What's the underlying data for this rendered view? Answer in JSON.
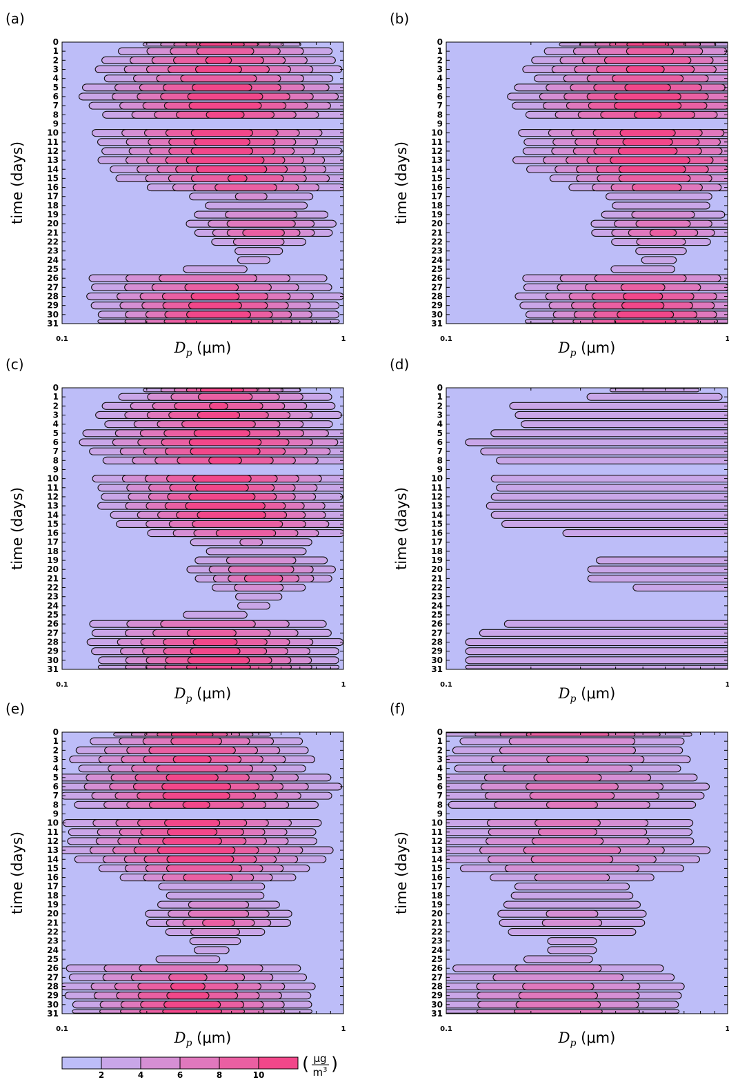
{
  "colors": {
    "background_level": "#bdbdf8",
    "scale": [
      "#bdbdf8",
      "#c9a6e8",
      "#d58fd4",
      "#e078bd",
      "#ea5fa2",
      "#f2478a",
      "#f83a78"
    ],
    "contour_line": "#111111"
  },
  "chart_data": [
    {
      "id": "a",
      "panel_label": "(a)",
      "type": "heatmap",
      "ylabel": "time (days)",
      "xlabel_sym": "D",
      "xlabel_sub": "p",
      "xlabel_unit": " (μm)",
      "x_scale": "log",
      "xlim": [
        0.1,
        1
      ],
      "x_ticks": [
        "0.1",
        "1"
      ],
      "ylim": [
        0,
        31
      ],
      "y_ticks": [
        "0",
        "1",
        "2",
        "3",
        "4",
        "5",
        "6",
        "7",
        "8",
        "9",
        "10",
        "11",
        "12",
        "13",
        "14",
        "15",
        "16",
        "17",
        "18",
        "19",
        "20",
        "21",
        "22",
        "23",
        "24",
        "25",
        "26",
        "27",
        "28",
        "29",
        "30",
        "31"
      ],
      "mode_diameter_um": [
        0.37,
        0.38,
        0.36,
        0.36,
        0.36,
        0.37,
        0.38,
        0.38,
        0.38,
        0.38,
        0.37,
        0.37,
        0.37,
        0.38,
        0.4,
        0.42,
        0.45,
        0.47,
        0.49,
        0.51,
        0.51,
        0.52,
        0.5,
        0.5,
        0.48,
        0.35,
        0.33,
        0.34,
        0.35,
        0.35,
        0.36,
        0.36
      ],
      "width_decades": [
        0.15,
        0.22,
        0.23,
        0.24,
        0.23,
        0.27,
        0.28,
        0.26,
        0.24,
        0.24,
        0.25,
        0.24,
        0.23,
        0.24,
        0.23,
        0.24,
        0.2,
        0.18,
        0.16,
        0.17,
        0.16,
        0.14,
        0.12,
        0.08,
        0.07,
        0.26,
        0.26,
        0.25,
        0.25,
        0.24,
        0.23,
        0.23
      ],
      "peak_ugm3": [
        11.5,
        8.9,
        10.2,
        10.6,
        9.5,
        10.8,
        11.2,
        11.3,
        10.4,
        1.5,
        11.0,
        10.9,
        11.2,
        11.8,
        11.6,
        10.1,
        9.3,
        4.2,
        3.8,
        5.3,
        8.0,
        9.2,
        5.3,
        3.5,
        2.8,
        2.2,
        7.5,
        8.6,
        10.6,
        10.8,
        11.3,
        11.4
      ]
    },
    {
      "id": "b",
      "panel_label": "(b)",
      "type": "heatmap",
      "ylabel": "time (days)",
      "xlabel_sym": "D",
      "xlabel_sub": "p",
      "xlabel_unit": " (μm)",
      "x_scale": "log",
      "xlim": [
        0.1,
        1
      ],
      "x_ticks": [
        "0.1",
        "1"
      ],
      "ylim": [
        0,
        31
      ],
      "y_ticks": [
        "0",
        "1",
        "2",
        "3",
        "4",
        "5",
        "6",
        "7",
        "8",
        "9",
        "10",
        "11",
        "12",
        "13",
        "14",
        "15",
        "16",
        "17",
        "18",
        "19",
        "20",
        "21",
        "22",
        "23",
        "24",
        "25",
        "26",
        "27",
        "28",
        "29",
        "30",
        "31"
      ],
      "mode_diameter_um": [
        0.52,
        0.53,
        0.52,
        0.51,
        0.52,
        0.52,
        0.52,
        0.52,
        0.52,
        0.52,
        0.52,
        0.52,
        0.52,
        0.53,
        0.54,
        0.55,
        0.56,
        0.57,
        0.58,
        0.59,
        0.59,
        0.59,
        0.58,
        0.58,
        0.57,
        0.5,
        0.49,
        0.5,
        0.5,
        0.5,
        0.51,
        0.51
      ],
      "width_decades": [
        0.17,
        0.22,
        0.23,
        0.24,
        0.23,
        0.26,
        0.27,
        0.26,
        0.24,
        0.24,
        0.25,
        0.24,
        0.24,
        0.26,
        0.24,
        0.21,
        0.18,
        0.16,
        0.16,
        0.16,
        0.16,
        0.15,
        0.13,
        0.09,
        0.08,
        0.26,
        0.26,
        0.25,
        0.25,
        0.24,
        0.23,
        0.23
      ],
      "peak_ugm3": [
        11.0,
        8.6,
        10.0,
        10.4,
        9.3,
        10.5,
        11.0,
        11.1,
        10.2,
        1.5,
        10.8,
        10.7,
        11.0,
        11.6,
        11.3,
        9.6,
        9.0,
        4.0,
        3.6,
        5.1,
        7.2,
        8.4,
        5.0,
        3.3,
        2.7,
        2.2,
        7.3,
        8.4,
        10.4,
        10.5,
        11.0,
        11.2
      ]
    },
    {
      "id": "c",
      "panel_label": "(c)",
      "type": "heatmap",
      "ylabel": "time (days)",
      "xlabel_sym": "D",
      "xlabel_sub": "p",
      "xlabel_unit": " (μm)",
      "x_scale": "log",
      "xlim": [
        0.1,
        1
      ],
      "x_ticks": [
        "0.1",
        "1"
      ],
      "ylim": [
        0,
        31
      ],
      "y_ticks": [
        "0",
        "1",
        "2",
        "3",
        "4",
        "5",
        "6",
        "7",
        "8",
        "9",
        "10",
        "11",
        "12",
        "13",
        "14",
        "15",
        "16",
        "17",
        "18",
        "19",
        "20",
        "21",
        "22",
        "23",
        "24",
        "25",
        "26",
        "27",
        "28",
        "29",
        "30",
        "31"
      ],
      "mode_diameter_um": [
        0.37,
        0.38,
        0.36,
        0.36,
        0.36,
        0.37,
        0.38,
        0.38,
        0.38,
        0.38,
        0.37,
        0.37,
        0.37,
        0.38,
        0.4,
        0.42,
        0.45,
        0.47,
        0.49,
        0.51,
        0.51,
        0.52,
        0.5,
        0.5,
        0.48,
        0.35,
        0.33,
        0.34,
        0.35,
        0.35,
        0.36,
        0.36
      ],
      "width_decades": [
        0.15,
        0.22,
        0.23,
        0.24,
        0.23,
        0.27,
        0.28,
        0.26,
        0.24,
        0.24,
        0.25,
        0.24,
        0.23,
        0.24,
        0.23,
        0.24,
        0.2,
        0.18,
        0.16,
        0.17,
        0.16,
        0.14,
        0.12,
        0.08,
        0.07,
        0.26,
        0.26,
        0.25,
        0.25,
        0.24,
        0.23,
        0.23
      ],
      "peak_ugm3": [
        11.4,
        8.8,
        10.1,
        10.5,
        9.4,
        10.7,
        11.1,
        11.2,
        10.3,
        1.5,
        10.9,
        10.8,
        11.4,
        11.9,
        11.5,
        10.0,
        9.2,
        4.1,
        3.7,
        5.2,
        7.8,
        9.0,
        5.2,
        3.4,
        2.8,
        2.2,
        7.4,
        8.5,
        10.5,
        10.7,
        11.2,
        11.3
      ]
    },
    {
      "id": "d",
      "panel_label": "(d)",
      "type": "heatmap",
      "ylabel": "time (days)",
      "xlabel_sym": "D",
      "xlabel_sub": "p",
      "xlabel_unit": " (μm)",
      "x_scale": "log",
      "xlim": [
        0.1,
        1
      ],
      "x_ticks": [
        "0.1",
        "1"
      ],
      "ylim": [
        0,
        31
      ],
      "y_ticks": [
        "0",
        "1",
        "2",
        "3",
        "4",
        "5",
        "6",
        "7",
        "8",
        "9",
        "10",
        "11",
        "12",
        "13",
        "14",
        "15",
        "16",
        "17",
        "18",
        "19",
        "20",
        "21",
        "22",
        "23",
        "24",
        "25",
        "26",
        "27",
        "28",
        "29",
        "30",
        "31"
      ],
      "mode_diameter_um": [
        0.55,
        0.55,
        0.55,
        0.55,
        0.55,
        0.55,
        0.55,
        0.55,
        0.55,
        0.55,
        0.55,
        0.55,
        0.55,
        0.55,
        0.55,
        0.55,
        0.55,
        0.55,
        0.55,
        0.7,
        0.7,
        0.7,
        0.7,
        0.55,
        0.55,
        0.55,
        0.5,
        0.5,
        0.5,
        0.5,
        0.5,
        0.5
      ],
      "width_decades": [
        0.3,
        0.55,
        0.55,
        0.55,
        0.55,
        0.6,
        0.62,
        0.6,
        0.58,
        0.55,
        0.58,
        0.58,
        0.58,
        0.58,
        0.58,
        0.58,
        0.45,
        0.2,
        0.2,
        0.38,
        0.38,
        0.38,
        0.3,
        0.2,
        0.2,
        0.2,
        0.6,
        0.62,
        0.65,
        0.65,
        0.65,
        0.65
      ],
      "peak_ugm3": [
        2.3,
        2.2,
        3.1,
        3.0,
        2.9,
        3.2,
        3.6,
        3.4,
        3.2,
        1.8,
        3.3,
        3.2,
        3.3,
        3.4,
        3.3,
        3.1,
        2.6,
        1.5,
        1.5,
        2.8,
        3.0,
        3.0,
        2.4,
        1.5,
        1.5,
        1.5,
        2.8,
        3.1,
        3.2,
        3.2,
        3.2,
        3.2
      ]
    },
    {
      "id": "e",
      "panel_label": "(e)",
      "type": "heatmap",
      "ylabel": "time (days)",
      "xlabel_sym": "D",
      "xlabel_sub": "p",
      "xlabel_unit": " (μm)",
      "x_scale": "log",
      "xlim": [
        0.1,
        1
      ],
      "x_ticks": [
        "0.1",
        "1"
      ],
      "ylim": [
        0,
        31
      ],
      "y_ticks": [
        "0",
        "1",
        "2",
        "3",
        "4",
        "5",
        "6",
        "7",
        "8",
        "9",
        "10",
        "11",
        "12",
        "13",
        "14",
        "15",
        "16",
        "17",
        "18",
        "19",
        "20",
        "21",
        "22",
        "23",
        "24",
        "25",
        "26",
        "27",
        "28",
        "29",
        "30",
        "31"
      ],
      "mode_diameter_um": [
        0.29,
        0.3,
        0.29,
        0.29,
        0.29,
        0.29,
        0.3,
        0.3,
        0.3,
        0.3,
        0.29,
        0.29,
        0.29,
        0.3,
        0.31,
        0.32,
        0.33,
        0.34,
        0.35,
        0.36,
        0.36,
        0.36,
        0.35,
        0.35,
        0.34,
        0.28,
        0.27,
        0.28,
        0.28,
        0.28,
        0.29,
        0.29
      ],
      "width_decades": [
        0.15,
        0.22,
        0.23,
        0.24,
        0.23,
        0.27,
        0.28,
        0.26,
        0.24,
        0.24,
        0.25,
        0.24,
        0.24,
        0.26,
        0.24,
        0.21,
        0.18,
        0.16,
        0.16,
        0.16,
        0.16,
        0.15,
        0.13,
        0.09,
        0.08,
        0.26,
        0.26,
        0.25,
        0.25,
        0.24,
        0.23,
        0.23
      ],
      "peak_ugm3": [
        11.3,
        8.7,
        10.0,
        10.4,
        9.3,
        10.6,
        11.0,
        11.1,
        10.2,
        1.5,
        10.8,
        10.7,
        11.0,
        11.5,
        11.3,
        9.8,
        9.0,
        4.0,
        3.6,
        5.0,
        7.5,
        8.6,
        5.0,
        3.3,
        2.7,
        2.2,
        7.2,
        8.3,
        10.3,
        10.5,
        11.0,
        11.1
      ]
    },
    {
      "id": "f",
      "panel_label": "(f)",
      "type": "heatmap",
      "ylabel": "time (days)",
      "xlabel_sym": "D",
      "xlabel_sub": "p",
      "xlabel_unit": " (μm)",
      "x_scale": "log",
      "xlim": [
        0.1,
        1
      ],
      "x_ticks": [
        "0.1",
        "1"
      ],
      "ylim": [
        0,
        31
      ],
      "y_ticks": [
        "0",
        "1",
        "2",
        "3",
        "4",
        "5",
        "6",
        "7",
        "8",
        "9",
        "10",
        "11",
        "12",
        "13",
        "14",
        "15",
        "16",
        "17",
        "18",
        "19",
        "20",
        "21",
        "22",
        "23",
        "24",
        "25",
        "26",
        "27",
        "28",
        "29",
        "30",
        "31"
      ],
      "mode_diameter_um": [
        0.27,
        0.28,
        0.27,
        0.27,
        0.27,
        0.27,
        0.28,
        0.28,
        0.28,
        0.28,
        0.27,
        0.27,
        0.27,
        0.28,
        0.28,
        0.28,
        0.28,
        0.28,
        0.28,
        0.28,
        0.28,
        0.28,
        0.28,
        0.28,
        0.28,
        0.25,
        0.25,
        0.25,
        0.25,
        0.25,
        0.25,
        0.25
      ],
      "width_decades": [
        0.25,
        0.28,
        0.28,
        0.29,
        0.28,
        0.3,
        0.31,
        0.3,
        0.29,
        0.27,
        0.29,
        0.29,
        0.29,
        0.31,
        0.29,
        0.27,
        0.22,
        0.21,
        0.21,
        0.21,
        0.21,
        0.2,
        0.2,
        0.12,
        0.12,
        0.28,
        0.29,
        0.29,
        0.29,
        0.28,
        0.27,
        0.27
      ],
      "peak_ugm3": [
        9.5,
        5.5,
        5.8,
        6.2,
        5.6,
        6.5,
        6.9,
        6.8,
        6.3,
        1.5,
        6.5,
        6.4,
        6.6,
        7.0,
        6.8,
        5.9,
        4.8,
        3.2,
        3.4,
        3.9,
        4.4,
        4.6,
        3.8,
        2.6,
        2.6,
        2.2,
        4.6,
        5.5,
        6.6,
        6.8,
        7.0,
        7.1
      ]
    }
  ],
  "colorbar": {
    "tick_labels": [
      "2",
      "4",
      "6",
      "8",
      "10"
    ],
    "range": [
      0,
      12
    ],
    "unit_symbol": "μg",
    "unit_denominator": "m",
    "unit_exponent": "3"
  }
}
